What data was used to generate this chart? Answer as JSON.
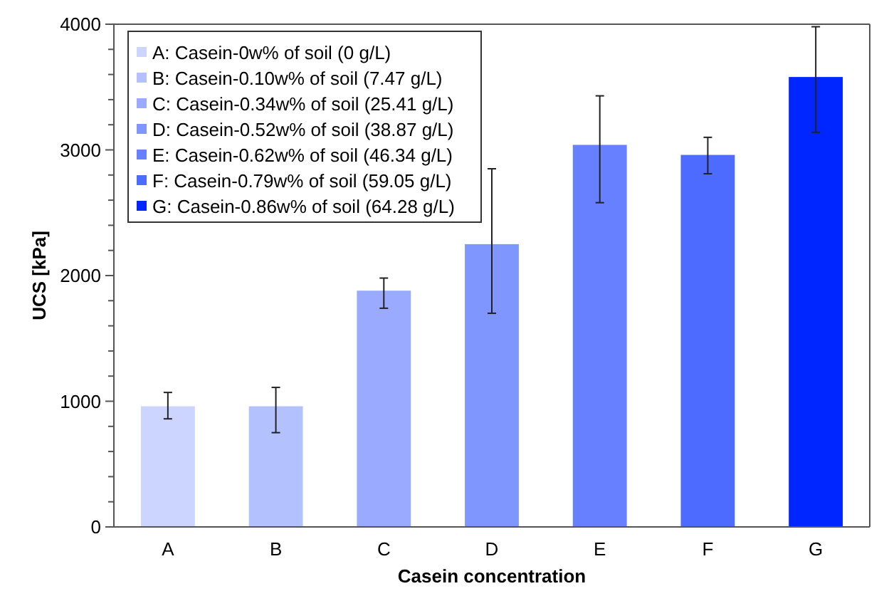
{
  "chart_data": {
    "type": "bar",
    "xlabel": "Casein concentration",
    "ylabel": "UCS [kPa]",
    "categories": [
      "A",
      "B",
      "C",
      "D",
      "E",
      "F",
      "G"
    ],
    "stacked": true,
    "legend": "top left",
    "ylim": [
      0,
      4000
    ],
    "yticks": [
      0,
      {
        "value": 200,
        "label": null
      },
      {
        "value": 400,
        "label": null
      },
      {
        "value": 600,
        "label": null
      },
      {
        "value": 800,
        "label": null
      },
      1000,
      {
        "value": 1200,
        "label": null
      },
      {
        "value": 1400,
        "label": null
      },
      {
        "value": 1600,
        "label": null
      },
      {
        "value": 1800,
        "label": null
      },
      2000,
      {
        "value": 2200,
        "label": null
      },
      {
        "value": 2400,
        "label": null
      },
      {
        "value": 2600,
        "label": null
      },
      {
        "value": 2800,
        "label": null
      },
      3000,
      {
        "value": 3200,
        "label": null
      },
      {
        "value": 3400,
        "label": null
      },
      {
        "value": 3600,
        "label": null
      },
      {
        "value": 3800,
        "label": null
      },
      4000
    ],
    "series": [
      {
        "name": "A: Casein-0w% of soil (0 g/L)",
        "color": "#ccd5ff",
        "values": [
          960,
          null,
          null,
          null,
          null,
          null,
          null
        ],
        "errors": [
          [
            860,
            1070
          ],
          null,
          null,
          null,
          null,
          null,
          null
        ]
      },
      {
        "name": "B: Casein-0.10w% of soil (7.47 g/L)",
        "color": "#b3c1ff",
        "values": [
          null,
          960,
          null,
          null,
          null,
          null,
          null
        ],
        "errors": [
          null,
          [
            750,
            1110
          ],
          null,
          null,
          null,
          null,
          null
        ]
      },
      {
        "name": "C: Casein-0.34w% of soil (25.41 g/L)",
        "color": "#99aaff",
        "values": [
          null,
          null,
          1880,
          null,
          null,
          null,
          null
        ],
        "errors": [
          null,
          null,
          [
            1740,
            1980
          ],
          null,
          null,
          null,
          null
        ]
      },
      {
        "name": "D: Casein-0.52w% of soil (38.87 g/L)",
        "color": "#8096ff",
        "values": [
          null,
          null,
          null,
          2250,
          null,
          null,
          null
        ],
        "errors": [
          null,
          null,
          null,
          [
            1700,
            2850
          ],
          null,
          null,
          null
        ]
      },
      {
        "name": "E: Casein-0.62w% of soil (46.34 g/L)",
        "color": "#6680ff",
        "values": [
          null,
          null,
          null,
          null,
          3040,
          null,
          null
        ],
        "errors": [
          null,
          null,
          null,
          null,
          [
            2580,
            3430
          ],
          null,
          null
        ]
      },
      {
        "name": "F: Casein-0.79w% of soil (59.05 g/L)",
        "color": "#4d6bff",
        "values": [
          null,
          null,
          null,
          null,
          null,
          2960,
          null
        ],
        "errors": [
          null,
          null,
          null,
          null,
          null,
          [
            2810,
            3100
          ],
          null
        ]
      },
      {
        "name": "G: Casein-0.86w% of soil (64.28 g/L)",
        "color": "#0026ff",
        "values": [
          null,
          null,
          null,
          null,
          null,
          null,
          3580
        ],
        "errors": [
          null,
          null,
          null,
          null,
          null,
          null,
          [
            3140,
            3980
          ]
        ]
      }
    ]
  }
}
